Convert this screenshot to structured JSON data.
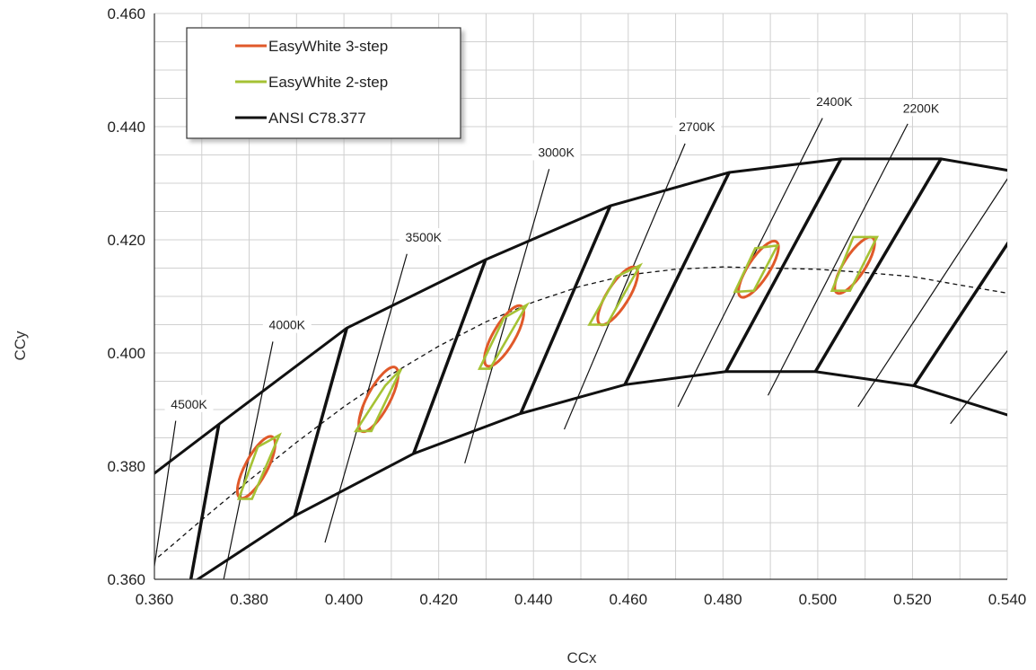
{
  "chart_data": {
    "type": "scatter",
    "xlabel": "CCx",
    "ylabel": "CCy",
    "xlim": [
      0.36,
      0.54
    ],
    "ylim": [
      0.36,
      0.46
    ],
    "xticks": [
      "0.360",
      "0.380",
      "0.400",
      "0.420",
      "0.440",
      "0.460",
      "0.480",
      "0.500",
      "0.520",
      "0.540"
    ],
    "yticks": [
      "0.360",
      "0.380",
      "0.400",
      "0.420",
      "0.440",
      "0.460"
    ],
    "grid": true,
    "legend_position": "top-left",
    "legend": [
      {
        "label": "EasyWhite 3-step",
        "color": "#e0592a"
      },
      {
        "label": "EasyWhite 2-step",
        "color": "#a5c234"
      },
      {
        "label": "ANSI C78.377",
        "color": "#111111"
      }
    ],
    "ansi_outline": {
      "upper": [
        [
          0.3598,
          0.3786
        ],
        [
          0.3736,
          0.3874
        ],
        [
          0.4006,
          0.4044
        ],
        [
          0.4299,
          0.4165
        ],
        [
          0.4562,
          0.426
        ],
        [
          0.4813,
          0.4319
        ],
        [
          0.5049,
          0.4343
        ],
        [
          0.526,
          0.4343
        ],
        [
          0.5406,
          0.4322
        ]
      ],
      "lower": [
        [
          0.3675,
          0.3591
        ],
        [
          0.3896,
          0.3712
        ],
        [
          0.4147,
          0.3822
        ],
        [
          0.4373,
          0.3893
        ],
        [
          0.4593,
          0.3944
        ],
        [
          0.4806,
          0.3967
        ],
        [
          0.4995,
          0.3967
        ],
        [
          0.5203,
          0.3942
        ],
        [
          0.5406,
          0.3889
        ]
      ]
    },
    "ansi_quads": [
      {
        "ul": [
          0.3736,
          0.3874
        ],
        "ur": [
          0.4006,
          0.4044
        ],
        "lr": [
          0.3896,
          0.3712
        ],
        "ll": [
          0.3675,
          0.3591
        ]
      },
      {
        "ul": [
          0.4006,
          0.4044
        ],
        "ur": [
          0.4299,
          0.4165
        ],
        "lr": [
          0.4147,
          0.3822
        ],
        "ll": [
          0.3896,
          0.3712
        ]
      },
      {
        "ul": [
          0.4299,
          0.4165
        ],
        "ur": [
          0.4562,
          0.426
        ],
        "lr": [
          0.4373,
          0.3893
        ],
        "ll": [
          0.4147,
          0.3822
        ]
      },
      {
        "ul": [
          0.4562,
          0.426
        ],
        "ur": [
          0.4813,
          0.4319
        ],
        "lr": [
          0.4593,
          0.3944
        ],
        "ll": [
          0.4373,
          0.3893
        ]
      },
      {
        "ul": [
          0.4813,
          0.4319
        ],
        "ur": [
          0.5049,
          0.4343
        ],
        "lr": [
          0.4806,
          0.3967
        ],
        "ll": [
          0.4593,
          0.3944
        ]
      },
      {
        "ul": [
          0.5049,
          0.4343
        ],
        "ur": [
          0.526,
          0.4343
        ],
        "lr": [
          0.4995,
          0.3967
        ],
        "ll": [
          0.4806,
          0.3967
        ]
      },
      {
        "ul": [
          0.526,
          0.4343
        ],
        "ur": [
          0.5406,
          0.4322
        ],
        "lr": [
          0.5203,
          0.3942
        ],
        "ll": [
          0.4995,
          0.3967
        ]
      },
      {
        "ul": [
          0.5406,
          0.4322
        ],
        "ur": [
          0.5406,
          0.4322
        ],
        "lr": [
          0.5406,
          0.3889
        ],
        "ll": [
          0.5203,
          0.3942
        ]
      }
    ],
    "thick_lines": [
      [
        [
          0.3736,
          0.3874
        ],
        [
          0.3675,
          0.3591
        ]
      ],
      [
        [
          0.4006,
          0.4044
        ],
        [
          0.3896,
          0.3712
        ]
      ],
      [
        [
          0.4299,
          0.4165
        ],
        [
          0.4147,
          0.3822
        ]
      ],
      [
        [
          0.4562,
          0.426
        ],
        [
          0.4373,
          0.3893
        ]
      ],
      [
        [
          0.4813,
          0.4319
        ],
        [
          0.4593,
          0.3944
        ]
      ],
      [
        [
          0.5049,
          0.4343
        ],
        [
          0.4806,
          0.3967
        ]
      ],
      [
        [
          0.526,
          0.4343
        ],
        [
          0.4995,
          0.3967
        ]
      ],
      [
        [
          0.5406,
          0.42
        ],
        [
          0.5203,
          0.3942
        ]
      ]
    ],
    "isotherms": [
      {
        "label": "4500K",
        "label_at": [
          0.3673,
          0.3905
        ],
        "from": [
          0.3645,
          0.388
        ],
        "to": [
          0.3595,
          0.3595
        ]
      },
      {
        "label": "4000K",
        "label_at": [
          0.388,
          0.4045
        ],
        "from": [
          0.385,
          0.402
        ],
        "to": [
          0.3745,
          0.3595
        ]
      },
      {
        "label": "3500K",
        "label_at": [
          0.4168,
          0.42
        ],
        "from": [
          0.4133,
          0.4175
        ],
        "to": [
          0.396,
          0.3665
        ]
      },
      {
        "label": "3000K",
        "label_at": [
          0.4448,
          0.435
        ],
        "from": [
          0.4433,
          0.4325
        ],
        "to": [
          0.4255,
          0.3805
        ]
      },
      {
        "label": "2700K",
        "label_at": [
          0.4745,
          0.4395
        ],
        "from": [
          0.472,
          0.437
        ],
        "to": [
          0.4465,
          0.3865
        ]
      },
      {
        "label": "2400K",
        "label_at": [
          0.5035,
          0.444
        ],
        "from": [
          0.501,
          0.4415
        ],
        "to": [
          0.4705,
          0.3905
        ]
      },
      {
        "label": "2200K",
        "label_at": [
          0.5218,
          0.4428
        ],
        "from": [
          0.519,
          0.4405
        ],
        "to": [
          0.4895,
          0.3925
        ]
      },
      {
        "label": "",
        "label_at": [
          0,
          0
        ],
        "from": [
          0.5406,
          0.4315
        ],
        "to": [
          0.5085,
          0.3905
        ]
      },
      {
        "label": "",
        "label_at": [
          0,
          0
        ],
        "from": [
          0.5406,
          0.401
        ],
        "to": [
          0.528,
          0.3875
        ]
      }
    ],
    "planckian_locus": [
      [
        0.3595,
        0.363
      ],
      [
        0.37,
        0.3705
      ],
      [
        0.38,
        0.3775
      ],
      [
        0.39,
        0.3842
      ],
      [
        0.4,
        0.3905
      ],
      [
        0.41,
        0.3962
      ],
      [
        0.42,
        0.4012
      ],
      [
        0.43,
        0.4055
      ],
      [
        0.44,
        0.409
      ],
      [
        0.45,
        0.4118
      ],
      [
        0.46,
        0.4138
      ],
      [
        0.47,
        0.4148
      ],
      [
        0.48,
        0.4152
      ],
      [
        0.49,
        0.415
      ],
      [
        0.5,
        0.4148
      ],
      [
        0.51,
        0.4142
      ],
      [
        0.52,
        0.4135
      ],
      [
        0.53,
        0.412
      ],
      [
        0.5406,
        0.4105
      ]
    ],
    "three_step_ellipses": [
      {
        "cx": 0.3815,
        "cy": 0.3798,
        "a": 0.0105,
        "b": 0.0045,
        "angle_deg": 62
      },
      {
        "cx": 0.4073,
        "cy": 0.3918,
        "a": 0.011,
        "b": 0.0046,
        "angle_deg": 62
      },
      {
        "cx": 0.4338,
        "cy": 0.403,
        "a": 0.0105,
        "b": 0.0045,
        "angle_deg": 60
      },
      {
        "cx": 0.4578,
        "cy": 0.4101,
        "a": 0.0102,
        "b": 0.0044,
        "angle_deg": 58
      },
      {
        "cx": 0.4875,
        "cy": 0.4148,
        "a": 0.01,
        "b": 0.0043,
        "angle_deg": 57
      },
      {
        "cx": 0.5078,
        "cy": 0.4155,
        "a": 0.01,
        "b": 0.0043,
        "angle_deg": 57
      }
    ],
    "two_step_quads": [
      [
        [
          0.3864,
          0.3855
        ],
        [
          0.3806,
          0.3742
        ],
        [
          0.3778,
          0.3742
        ],
        [
          0.3818,
          0.3834
        ]
      ],
      [
        [
          0.4121,
          0.3972
        ],
        [
          0.4058,
          0.3862
        ],
        [
          0.4025,
          0.3862
        ],
        [
          0.4087,
          0.3942
        ]
      ],
      [
        [
          0.4386,
          0.4085
        ],
        [
          0.4308,
          0.3972
        ],
        [
          0.4286,
          0.3972
        ],
        [
          0.4338,
          0.4062
        ]
      ],
      [
        [
          0.4625,
          0.4155
        ],
        [
          0.4555,
          0.405
        ],
        [
          0.4518,
          0.405
        ],
        [
          0.4575,
          0.4135
        ]
      ],
      [
        [
          0.4915,
          0.419
        ],
        [
          0.4865,
          0.411
        ],
        [
          0.4825,
          0.4108
        ],
        [
          0.4868,
          0.4185
        ]
      ],
      [
        [
          0.5125,
          0.4205
        ],
        [
          0.5068,
          0.411
        ],
        [
          0.503,
          0.411
        ],
        [
          0.5075,
          0.4205
        ]
      ]
    ]
  }
}
